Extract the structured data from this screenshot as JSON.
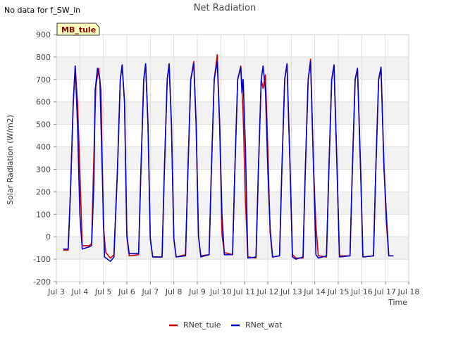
{
  "chart_data": {
    "type": "line",
    "title": "Net Radiation",
    "note": "No data for f_SW_in",
    "site_badge": "MB_tule",
    "xlabel": "Time",
    "ylabel": "Solar Radiation (W/m2)",
    "ylim": [
      -200,
      900
    ],
    "yticks": [
      -200,
      -100,
      0,
      100,
      200,
      300,
      400,
      500,
      600,
      700,
      800,
      900
    ],
    "xlim": [
      3,
      18
    ],
    "xticks": [
      3,
      4,
      5,
      6,
      7,
      8,
      9,
      10,
      11,
      12,
      13,
      14,
      15,
      16,
      17,
      18
    ],
    "xtick_labels": [
      "Jul 3",
      "Jul 4",
      "Jul 5",
      "Jul 6",
      "Jul 7",
      "Jul 8",
      "Jul 9",
      "Jul 10",
      "Jul 11",
      "Jul 12",
      "Jul 13",
      "Jul 14",
      "Jul 15",
      "Jul 16",
      "Jul 17",
      "Jul 18"
    ],
    "legend_position": "bottom-center",
    "series": [
      {
        "name": "RNet_tule",
        "color": "#cc0000",
        "points": [
          [
            3.3,
            -60
          ],
          [
            3.5,
            -60
          ],
          [
            3.6,
            200
          ],
          [
            3.72,
            600
          ],
          [
            3.8,
            760
          ],
          [
            3.9,
            600
          ],
          [
            4.0,
            300
          ],
          [
            4.1,
            -40
          ],
          [
            4.4,
            -40
          ],
          [
            4.5,
            -30
          ],
          [
            4.6,
            370
          ],
          [
            4.68,
            670
          ],
          [
            4.8,
            750
          ],
          [
            4.9,
            650
          ],
          [
            5.0,
            50
          ],
          [
            5.1,
            -70
          ],
          [
            5.3,
            -95
          ],
          [
            5.45,
            -80
          ],
          [
            5.6,
            300
          ],
          [
            5.72,
            700
          ],
          [
            5.8,
            760
          ],
          [
            5.9,
            600
          ],
          [
            6.0,
            0
          ],
          [
            6.1,
            -85
          ],
          [
            6.5,
            -80
          ],
          [
            6.6,
            300
          ],
          [
            6.72,
            700
          ],
          [
            6.8,
            770
          ],
          [
            6.9,
            500
          ],
          [
            7.0,
            -10
          ],
          [
            7.1,
            -90
          ],
          [
            7.5,
            -90
          ],
          [
            7.6,
            300
          ],
          [
            7.72,
            700
          ],
          [
            7.8,
            770
          ],
          [
            7.9,
            500
          ],
          [
            8.0,
            -10
          ],
          [
            8.1,
            -90
          ],
          [
            8.5,
            -80
          ],
          [
            8.6,
            300
          ],
          [
            8.72,
            700
          ],
          [
            8.85,
            780
          ],
          [
            8.95,
            500
          ],
          [
            9.05,
            0
          ],
          [
            9.15,
            -85
          ],
          [
            9.5,
            -80
          ],
          [
            9.6,
            300
          ],
          [
            9.72,
            700
          ],
          [
            9.85,
            810
          ],
          [
            9.95,
            500
          ],
          [
            10.05,
            10
          ],
          [
            10.15,
            -70
          ],
          [
            10.5,
            -80
          ],
          [
            10.6,
            300
          ],
          [
            10.72,
            700
          ],
          [
            10.85,
            760
          ],
          [
            10.95,
            550
          ],
          [
            11.05,
            160
          ],
          [
            11.15,
            -90
          ],
          [
            11.5,
            -95
          ],
          [
            11.6,
            300
          ],
          [
            11.72,
            700
          ],
          [
            11.8,
            660
          ],
          [
            11.9,
            720
          ],
          [
            12.0,
            400
          ],
          [
            12.1,
            20
          ],
          [
            12.2,
            -90
          ],
          [
            12.5,
            -85
          ],
          [
            12.6,
            300
          ],
          [
            12.72,
            700
          ],
          [
            12.82,
            770
          ],
          [
            12.95,
            300
          ],
          [
            13.05,
            -80
          ],
          [
            13.2,
            -95
          ],
          [
            13.5,
            -95
          ],
          [
            13.6,
            300
          ],
          [
            13.72,
            700
          ],
          [
            13.82,
            790
          ],
          [
            13.95,
            300
          ],
          [
            14.05,
            50
          ],
          [
            14.15,
            -85
          ],
          [
            14.5,
            -90
          ],
          [
            14.6,
            300
          ],
          [
            14.72,
            700
          ],
          [
            14.82,
            760
          ],
          [
            14.95,
            300
          ],
          [
            15.05,
            -85
          ],
          [
            15.5,
            -85
          ],
          [
            15.6,
            300
          ],
          [
            15.72,
            700
          ],
          [
            15.82,
            750
          ],
          [
            15.95,
            300
          ],
          [
            16.05,
            -90
          ],
          [
            16.5,
            -85
          ],
          [
            16.6,
            300
          ],
          [
            16.72,
            700
          ],
          [
            16.82,
            750
          ],
          [
            16.95,
            300
          ],
          [
            17.05,
            60
          ],
          [
            17.15,
            -85
          ],
          [
            17.35,
            -85
          ]
        ]
      },
      {
        "name": "RNet_wat",
        "color": "#0000cc",
        "points": [
          [
            3.3,
            -55
          ],
          [
            3.5,
            -55
          ],
          [
            3.6,
            200
          ],
          [
            3.72,
            600
          ],
          [
            3.8,
            760
          ],
          [
            3.9,
            500
          ],
          [
            4.0,
            100
          ],
          [
            4.1,
            -55
          ],
          [
            4.4,
            -45
          ],
          [
            4.5,
            -40
          ],
          [
            4.6,
            240
          ],
          [
            4.65,
            650
          ],
          [
            4.75,
            750
          ],
          [
            4.85,
            700
          ],
          [
            4.95,
            300
          ],
          [
            5.05,
            -90
          ],
          [
            5.3,
            -110
          ],
          [
            5.45,
            -90
          ],
          [
            5.6,
            300
          ],
          [
            5.72,
            700
          ],
          [
            5.8,
            765
          ],
          [
            5.9,
            600
          ],
          [
            6.0,
            10
          ],
          [
            6.1,
            -75
          ],
          [
            6.5,
            -75
          ],
          [
            6.6,
            300
          ],
          [
            6.72,
            700
          ],
          [
            6.8,
            770
          ],
          [
            6.9,
            500
          ],
          [
            7.0,
            -10
          ],
          [
            7.1,
            -90
          ],
          [
            7.5,
            -90
          ],
          [
            7.6,
            300
          ],
          [
            7.72,
            700
          ],
          [
            7.8,
            770
          ],
          [
            7.9,
            500
          ],
          [
            8.0,
            -10
          ],
          [
            8.1,
            -90
          ],
          [
            8.5,
            -85
          ],
          [
            8.6,
            300
          ],
          [
            8.72,
            700
          ],
          [
            8.85,
            770
          ],
          [
            8.95,
            500
          ],
          [
            9.05,
            0
          ],
          [
            9.15,
            -90
          ],
          [
            9.5,
            -80
          ],
          [
            9.6,
            300
          ],
          [
            9.72,
            700
          ],
          [
            9.85,
            780
          ],
          [
            9.95,
            500
          ],
          [
            10.05,
            100
          ],
          [
            10.15,
            -80
          ],
          [
            10.5,
            -80
          ],
          [
            10.6,
            300
          ],
          [
            10.72,
            700
          ],
          [
            10.85,
            755
          ],
          [
            10.9,
            640
          ],
          [
            10.95,
            700
          ],
          [
            11.05,
            400
          ],
          [
            11.15,
            -95
          ],
          [
            11.5,
            -90
          ],
          [
            11.6,
            300
          ],
          [
            11.72,
            700
          ],
          [
            11.8,
            760
          ],
          [
            11.9,
            650
          ],
          [
            12.0,
            300
          ],
          [
            12.1,
            40
          ],
          [
            12.2,
            -90
          ],
          [
            12.5,
            -85
          ],
          [
            12.6,
            300
          ],
          [
            12.72,
            700
          ],
          [
            12.82,
            770
          ],
          [
            12.95,
            300
          ],
          [
            13.05,
            -90
          ],
          [
            13.2,
            -100
          ],
          [
            13.5,
            -90
          ],
          [
            13.6,
            300
          ],
          [
            13.72,
            700
          ],
          [
            13.82,
            780
          ],
          [
            13.95,
            300
          ],
          [
            14.05,
            -80
          ],
          [
            14.15,
            -95
          ],
          [
            14.5,
            -85
          ],
          [
            14.6,
            300
          ],
          [
            14.72,
            700
          ],
          [
            14.82,
            765
          ],
          [
            14.95,
            300
          ],
          [
            15.05,
            -90
          ],
          [
            15.5,
            -85
          ],
          [
            15.6,
            300
          ],
          [
            15.72,
            700
          ],
          [
            15.82,
            750
          ],
          [
            15.95,
            300
          ],
          [
            16.05,
            -90
          ],
          [
            16.5,
            -85
          ],
          [
            16.6,
            300
          ],
          [
            16.72,
            700
          ],
          [
            16.82,
            755
          ],
          [
            16.95,
            300
          ],
          [
            17.05,
            100
          ],
          [
            17.15,
            -85
          ],
          [
            17.35,
            -85
          ]
        ]
      }
    ]
  }
}
